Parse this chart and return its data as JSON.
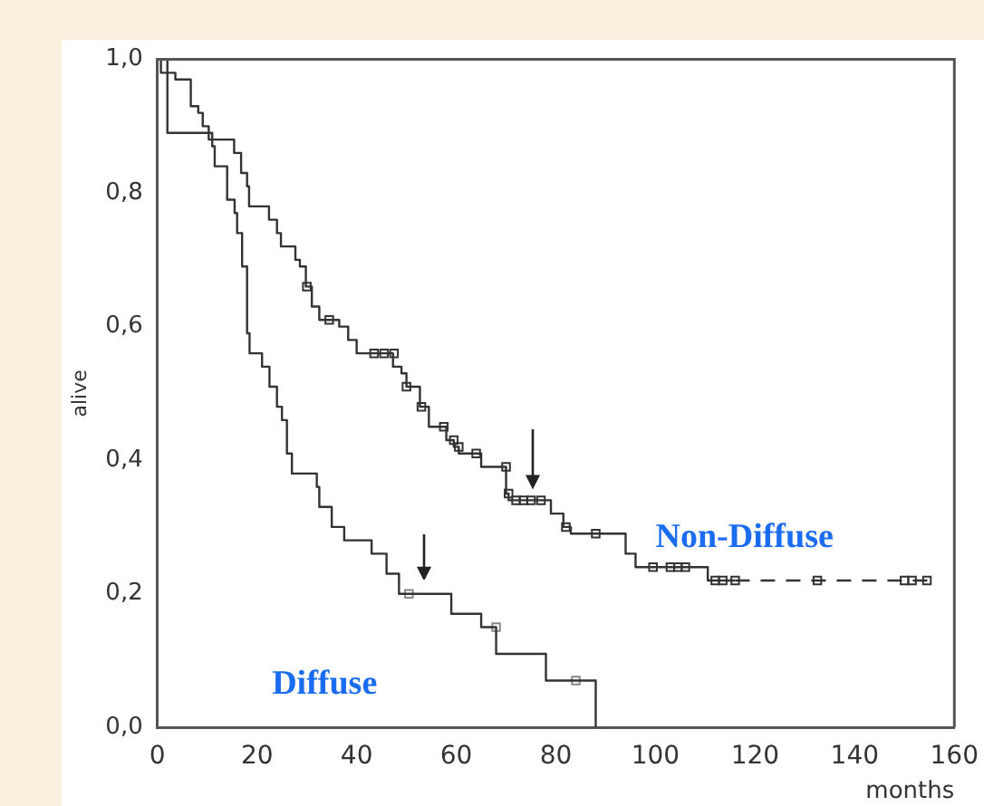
{
  "chart_data": {
    "type": "step",
    "xlabel": "months",
    "ylabel": "alive",
    "xlim": [
      0,
      160
    ],
    "xticks": [
      0,
      20,
      40,
      60,
      80,
      100,
      120,
      140,
      160
    ],
    "ylim": [
      0,
      1
    ],
    "yticks": [
      {
        "value": 0,
        "label": "0,0"
      },
      {
        "value": 0.2,
        "label": "0,2"
      },
      {
        "value": 0.4,
        "label": "0,4"
      },
      {
        "value": 0.6,
        "label": "0,6"
      },
      {
        "value": 0.8,
        "label": "0,8"
      },
      {
        "value": 1,
        "label": "1,0"
      }
    ],
    "grid": false,
    "legend": false,
    "marker": "none",
    "line_style": "solid",
    "series": [
      {
        "name": "Non-Diffuse",
        "color": "#333333",
        "x": [
          0,
          0.7,
          3.6,
          6.7,
          8.2,
          9.1,
          10.3,
          15.4,
          16.8,
          18,
          18.4,
          22.4,
          24,
          24.8,
          27.7,
          28.6,
          29.8,
          31,
          32.5,
          36.5,
          38.3,
          40,
          47.3,
          49,
          50,
          52.7,
          54.5,
          58,
          59.5,
          60.5,
          65,
          70,
          70.5,
          79,
          81.5,
          83,
          94,
          96,
          110.5,
          116
        ],
        "values": [
          1,
          0.98,
          0.97,
          0.93,
          0.92,
          0.9,
          0.88,
          0.86,
          0.83,
          0.81,
          0.78,
          0.76,
          0.74,
          0.72,
          0.7,
          0.69,
          0.66,
          0.63,
          0.61,
          0.6,
          0.58,
          0.56,
          0.54,
          0.53,
          0.51,
          0.48,
          0.45,
          0.43,
          0.42,
          0.41,
          0.39,
          0.35,
          0.34,
          0.32,
          0.3,
          0.29,
          0.26,
          0.24,
          0.22,
          0.22
        ]
      },
      {
        "type": "line",
        "line_style": "dashed",
        "color": "#333333",
        "x": [
          116,
          156
        ],
        "values": [
          0.22,
          0.22
        ]
      },
      {
        "name": "Diffuse",
        "color": "#333333",
        "x": [
          0,
          2,
          11,
          11.5,
          14,
          15.5,
          16,
          17,
          18,
          18.5,
          21,
          22.5,
          24,
          25,
          26,
          27,
          32,
          32.5,
          35,
          37.5,
          43,
          46,
          48.5,
          59,
          65,
          68,
          78,
          88
        ],
        "values": [
          1,
          0.89,
          0.87,
          0.84,
          0.79,
          0.77,
          0.74,
          0.69,
          0.59,
          0.56,
          0.54,
          0.51,
          0.48,
          0.46,
          0.41,
          0.38,
          0.36,
          0.33,
          0.3,
          0.28,
          0.26,
          0.23,
          0.2,
          0.17,
          0.15,
          0.11,
          0.07,
          0
        ]
      },
      {
        "type": "scatter",
        "marker": "square",
        "color": "#333333",
        "x": [
          30,
          34.5,
          43.5,
          45.5,
          47.5,
          50,
          53,
          57.5,
          59.5,
          60.5,
          64,
          70,
          70.5,
          72,
          73.5,
          75,
          77,
          82,
          88,
          99.5,
          103,
          104.5,
          106,
          112,
          113.5,
          116,
          132.5,
          150,
          151.5,
          154.5
        ],
        "values": [
          0.66,
          0.61,
          0.56,
          0.56,
          0.56,
          0.51,
          0.48,
          0.45,
          0.43,
          0.42,
          0.41,
          0.39,
          0.35,
          0.34,
          0.34,
          0.34,
          0.34,
          0.3,
          0.29,
          0.24,
          0.24,
          0.24,
          0.24,
          0.22,
          0.22,
          0.22,
          0.22,
          0.22,
          0.22,
          0.22
        ]
      },
      {
        "type": "scatter",
        "marker": "square",
        "color": "#888888",
        "x": [
          50.5,
          68,
          84
        ],
        "values": [
          0.2,
          0.15,
          0.07
        ]
      }
    ]
  }
}
